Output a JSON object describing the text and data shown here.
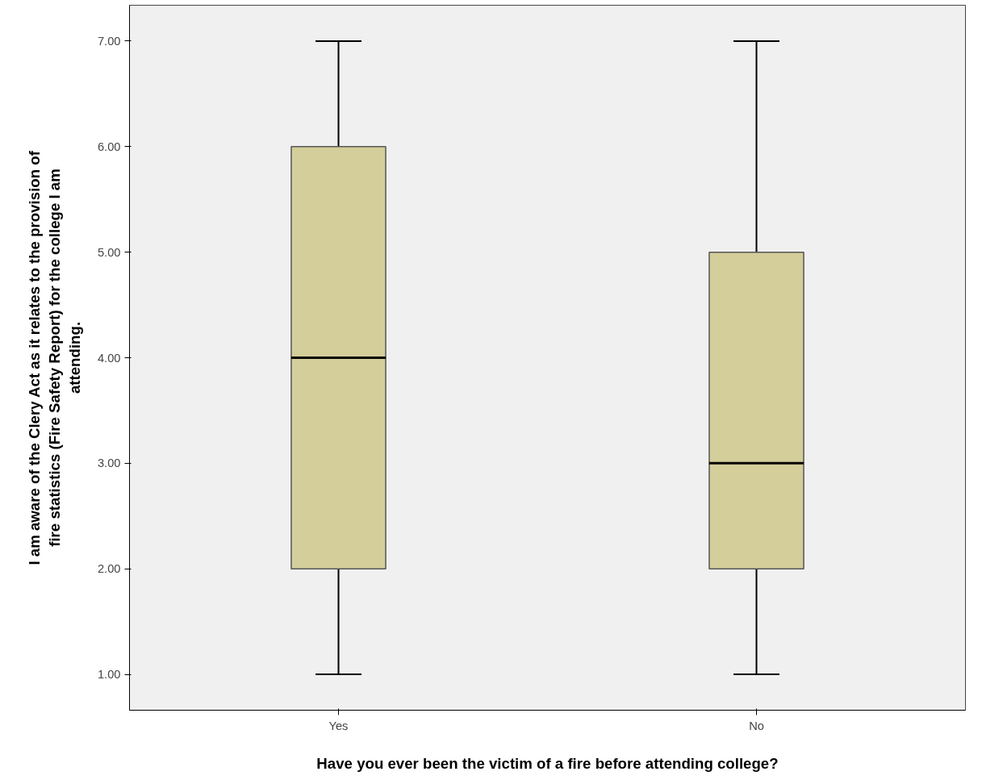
{
  "chart_data": {
    "type": "box",
    "xlabel": "Have you ever been the victim of a fire before attending college?",
    "ylabel": "I am aware of the Clery Act as it relates to the provision of fire statistics (Fire Safety Report) for the college I am attending.",
    "categories": [
      "Yes",
      "No"
    ],
    "boxes": [
      {
        "low": 1.0,
        "q1": 2.0,
        "median": 4.0,
        "q3": 6.0,
        "high": 7.0
      },
      {
        "low": 1.0,
        "q1": 2.0,
        "median": 3.0,
        "q3": 5.0,
        "high": 7.0
      }
    ],
    "color": "#d3ce9a",
    "ylim": [
      0.66,
      7.34
    ],
    "yticks": [
      {
        "value": 1,
        "label": "1.00"
      },
      {
        "value": 2,
        "label": "2.00"
      },
      {
        "value": 3,
        "label": "3.00"
      },
      {
        "value": 4,
        "label": "4.00"
      },
      {
        "value": 5,
        "label": "5.00"
      },
      {
        "value": 6,
        "label": "6.00"
      },
      {
        "value": 7,
        "label": "7.00"
      }
    ],
    "grid": false
  }
}
